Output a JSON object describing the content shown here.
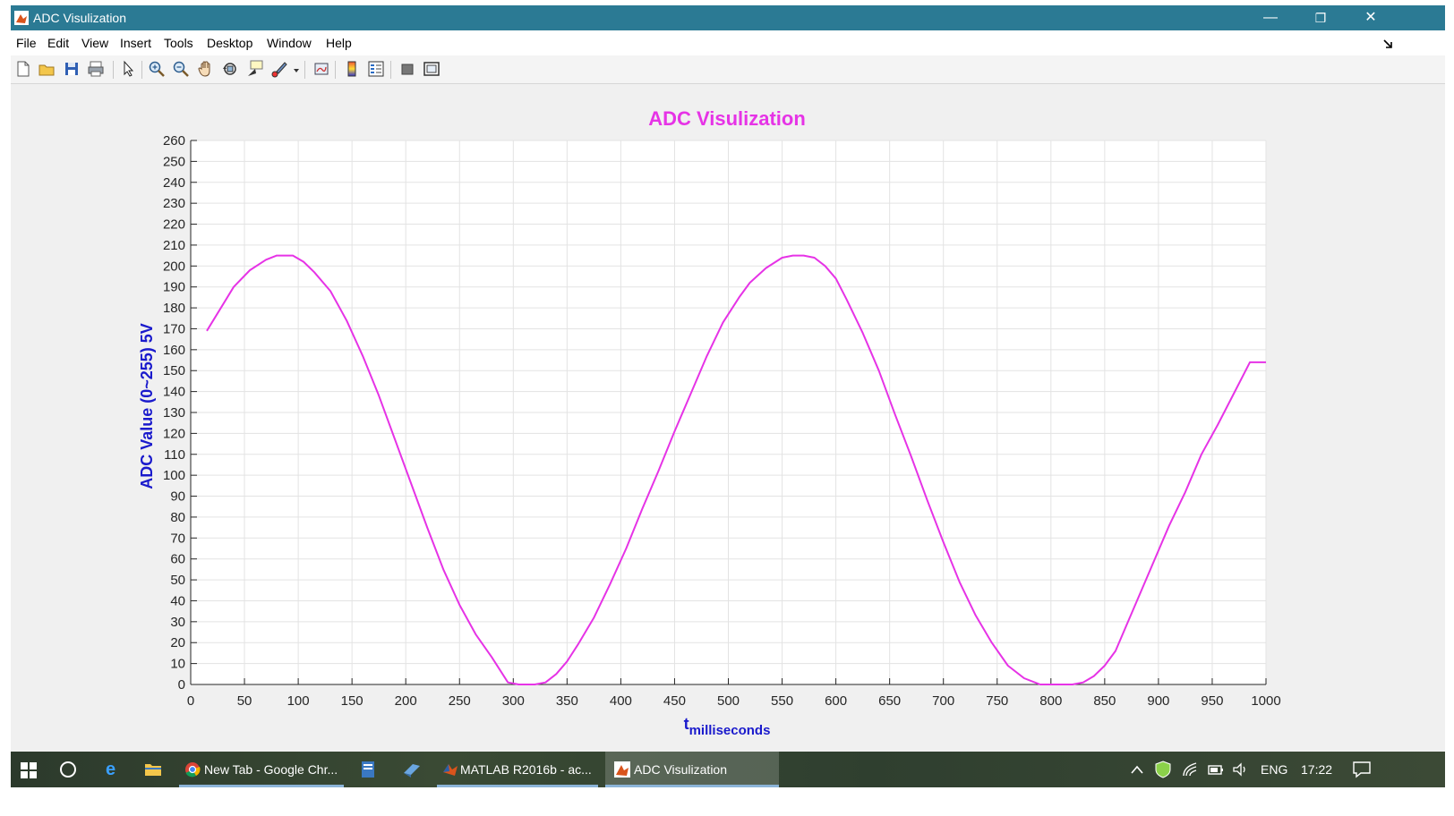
{
  "window": {
    "title": "ADC Visulization",
    "controls": {
      "minimize": "—",
      "restore": "❐",
      "close": "✕"
    }
  },
  "menubar": {
    "items": [
      "File",
      "Edit",
      "View",
      "Insert",
      "Tools",
      "Desktop",
      "Window",
      "Help"
    ]
  },
  "toolbar": {
    "icons": [
      "new-figure-icon",
      "open-file-icon",
      "save-icon",
      "print-icon",
      "pointer-icon",
      "zoom-in-icon",
      "zoom-out-icon",
      "pan-icon",
      "rotate-3d-icon",
      "data-cursor-icon",
      "brush-icon",
      "link-plot-icon",
      "colorbar-icon",
      "legend-icon",
      "hide-plot-tools-icon",
      "show-plot-tools-icon"
    ]
  },
  "chart_data": {
    "type": "line",
    "title": "ADC Visulization",
    "xlabel_main": "t",
    "xlabel_sub": "milliseconds",
    "ylabel": "ADC Value (0~255) 5V",
    "xlim": [
      0,
      1000
    ],
    "ylim": [
      0,
      260
    ],
    "xticks": [
      0,
      50,
      100,
      150,
      200,
      250,
      300,
      350,
      400,
      450,
      500,
      550,
      600,
      650,
      700,
      750,
      800,
      850,
      900,
      950,
      1000
    ],
    "yticks": [
      0,
      10,
      20,
      30,
      40,
      50,
      60,
      70,
      80,
      90,
      100,
      110,
      120,
      130,
      140,
      150,
      160,
      170,
      180,
      190,
      200,
      210,
      220,
      230,
      240,
      250,
      260
    ],
    "grid": true,
    "line_color": "#e633e6",
    "title_color": "#e633e6",
    "label_color": "#1a1acc",
    "series": [
      {
        "x": [
          15,
          40,
          55,
          70,
          80,
          90,
          95,
          105,
          115,
          130,
          145,
          160,
          175,
          190,
          205,
          220,
          235,
          250,
          265,
          280,
          295,
          305,
          310,
          320,
          330,
          340,
          350,
          360,
          375,
          390,
          405,
          420,
          435,
          450,
          465,
          480,
          495,
          510,
          520,
          535,
          550,
          560,
          570,
          580,
          590,
          600,
          610,
          625,
          640,
          655,
          670,
          685,
          700,
          715,
          730,
          745,
          760,
          775,
          790,
          800,
          810,
          820,
          830,
          840,
          850,
          860,
          870,
          880,
          895,
          910,
          925,
          940,
          955,
          970,
          985,
          1000
        ],
        "y": [
          169,
          190,
          198,
          203,
          205,
          205,
          205,
          202,
          197,
          188,
          174,
          157,
          138,
          117,
          96,
          75,
          55,
          38,
          24,
          13,
          1,
          0,
          0,
          0,
          1,
          5,
          11,
          19,
          32,
          48,
          65,
          84,
          102,
          121,
          139,
          157,
          173,
          185,
          192,
          199,
          204,
          205,
          205,
          204,
          200,
          194,
          184,
          168,
          150,
          129,
          109,
          88,
          68,
          49,
          33,
          20,
          9,
          3,
          0,
          0,
          0,
          0,
          1,
          4,
          9,
          16,
          28,
          40,
          58,
          76,
          92,
          110,
          124,
          139,
          154,
          154
        ]
      }
    ]
  },
  "taskbar": {
    "tasks": [
      {
        "label": "New Tab - Google Chr...",
        "icon": "chrome-icon"
      },
      {
        "label": "MATLAB R2016b - ac...",
        "icon": "matlab-icon"
      },
      {
        "label": "ADC Visulization",
        "icon": "figure-icon"
      }
    ],
    "tray": {
      "language": "ENG",
      "time": "17:22"
    }
  }
}
